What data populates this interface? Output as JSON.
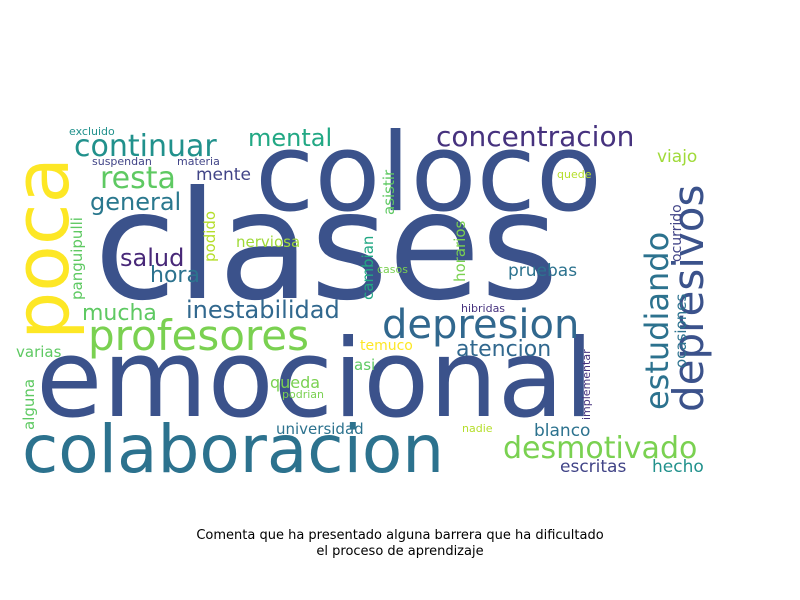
{
  "caption": {
    "line1": "Comenta que ha presentado alguna barrera que ha dificultado",
    "line2": "el proceso de aprendizaje"
  },
  "words": [
    {
      "text": "clases",
      "color": "#3b528b"
    },
    {
      "text": "coloco",
      "color": "#3b528b"
    },
    {
      "text": "emocional",
      "color": "#3b528b"
    },
    {
      "text": "poca",
      "color": "#fde725"
    },
    {
      "text": "colaboracion",
      "color": "#2c728e"
    },
    {
      "text": "profesores",
      "color": "#7ad151"
    },
    {
      "text": "depresion",
      "color": "#31688e"
    },
    {
      "text": "depresivos",
      "color": "#3b528b"
    },
    {
      "text": "estudiando",
      "color": "#2c728e"
    },
    {
      "text": "concentracion",
      "color": "#46327e"
    },
    {
      "text": "desmotivado",
      "color": "#7ad151"
    },
    {
      "text": "continuar",
      "color": "#21918c"
    },
    {
      "text": "resta",
      "color": "#5ec962"
    },
    {
      "text": "mental",
      "color": "#22a884"
    },
    {
      "text": "general",
      "color": "#2a788e"
    },
    {
      "text": "inestabilidad",
      "color": "#31688e"
    },
    {
      "text": "mucha",
      "color": "#5ec962"
    },
    {
      "text": "salud",
      "color": "#482878"
    },
    {
      "text": "hora",
      "color": "#2c728e"
    },
    {
      "text": "mente",
      "color": "#414487"
    },
    {
      "text": "atencion",
      "color": "#31688e"
    },
    {
      "text": "pruebas",
      "color": "#2c728e"
    },
    {
      "text": "blanco",
      "color": "#2c728e"
    },
    {
      "text": "escritas",
      "color": "#414487"
    },
    {
      "text": "hecho",
      "color": "#21918c"
    },
    {
      "text": "viajo",
      "color": "#a0da39"
    },
    {
      "text": "universidad",
      "color": "#2c728e"
    },
    {
      "text": "nerviosa",
      "color": "#a0da39"
    },
    {
      "text": "queda",
      "color": "#7ad151"
    },
    {
      "text": "temuco",
      "color": "#fde725"
    },
    {
      "text": "asi",
      "color": "#5ec962"
    },
    {
      "text": "varias",
      "color": "#5ec962"
    },
    {
      "text": "alguna",
      "color": "#5ec962"
    },
    {
      "text": "panguipulli",
      "color": "#5ec962"
    },
    {
      "text": "podido",
      "color": "#b5de2b"
    },
    {
      "text": "cambian",
      "color": "#22a884"
    },
    {
      "text": "asistir",
      "color": "#5ec962"
    },
    {
      "text": "horarios",
      "color": "#7ad151"
    },
    {
      "text": "ocurrido",
      "color": "#414487"
    },
    {
      "text": "ocasiones",
      "color": "#2c728e"
    },
    {
      "text": "implementar",
      "color": "#46327e"
    },
    {
      "text": "excluido",
      "color": "#21918c"
    },
    {
      "text": "suspendan",
      "color": "#414487"
    },
    {
      "text": "materia",
      "color": "#414487"
    },
    {
      "text": "quede",
      "color": "#b5de2b"
    },
    {
      "text": "casos",
      "color": "#7ad151"
    },
    {
      "text": "hibridas",
      "color": "#46327e"
    },
    {
      "text": "podrian",
      "color": "#7ad151"
    },
    {
      "text": "nadie",
      "color": "#b5de2b"
    }
  ]
}
